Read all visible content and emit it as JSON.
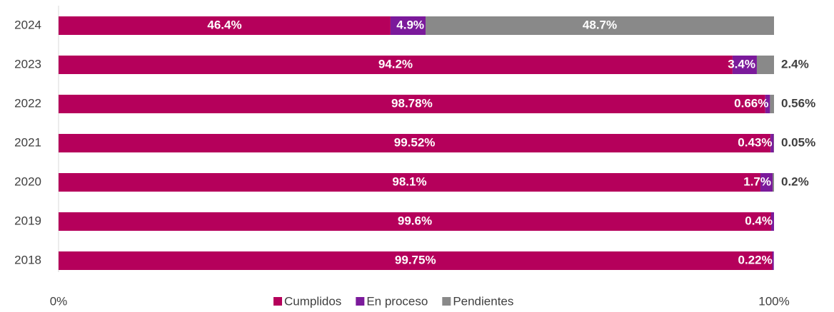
{
  "chart_data": {
    "type": "stacked_bar_horizontal",
    "categories": [
      "2018",
      "2019",
      "2020",
      "2021",
      "2022",
      "2023",
      "2024"
    ],
    "series": [
      {
        "name": "Cumplidos",
        "color": "#b5005b",
        "values": [
          99.75,
          99.6,
          98.1,
          99.52,
          98.78,
          94.2,
          46.4
        ],
        "value_labels": [
          "99.75%",
          "99.6%",
          "98.1%",
          "99.52%",
          "98.78%",
          "94.2%",
          "46.4%"
        ]
      },
      {
        "name": "En proceso",
        "color": "#7b1a9b",
        "values": [
          0.22,
          0.4,
          1.7,
          0.43,
          0.66,
          3.4,
          4.9
        ],
        "value_labels": [
          "0.22%",
          "0.4%",
          "1.7%",
          "0.43%",
          "0.66%",
          "3.4%",
          "4.9%"
        ]
      },
      {
        "name": "Pendientes",
        "color": "#898989",
        "values": [
          null,
          null,
          0.2,
          0.05,
          0.56,
          2.4,
          48.7
        ],
        "value_labels": [
          null,
          null,
          "0.2%",
          "0.05%",
          "0.56%",
          "2.4%",
          "48.7%"
        ]
      }
    ],
    "xlim": [
      0,
      100
    ],
    "xticks": [
      {
        "value": 0,
        "label": "0%"
      },
      {
        "value": 100,
        "label": "100%"
      }
    ],
    "legend": "bottom"
  }
}
